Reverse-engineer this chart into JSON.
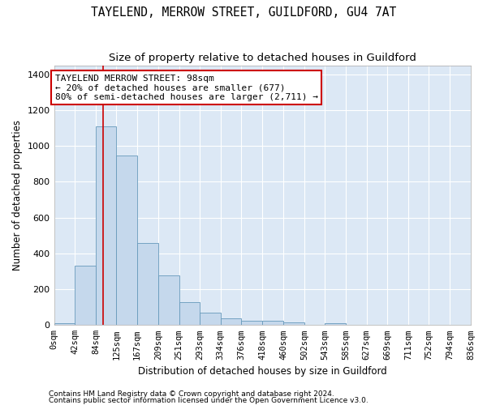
{
  "title": "TAYELEND, MERROW STREET, GUILDFORD, GU4 7AT",
  "subtitle": "Size of property relative to detached houses in Guildford",
  "xlabel": "Distribution of detached houses by size in Guildford",
  "ylabel": "Number of detached properties",
  "bar_heights": [
    10,
    330,
    1110,
    945,
    460,
    275,
    130,
    68,
    38,
    25,
    25,
    15,
    0,
    12,
    0,
    0,
    0,
    0,
    0,
    0
  ],
  "bar_color": "#c5d8ec",
  "bar_edge_color": "#6699bb",
  "x_labels": [
    "0sqm",
    "42sqm",
    "84sqm",
    "125sqm",
    "167sqm",
    "209sqm",
    "251sqm",
    "293sqm",
    "334sqm",
    "376sqm",
    "418sqm",
    "460sqm",
    "502sqm",
    "543sqm",
    "585sqm",
    "627sqm",
    "669sqm",
    "711sqm",
    "752sqm",
    "794sqm",
    "836sqm"
  ],
  "bin_edges": [
    0,
    42,
    84,
    125,
    167,
    209,
    251,
    293,
    334,
    376,
    418,
    460,
    502,
    543,
    585,
    627,
    669,
    711,
    752,
    794,
    836
  ],
  "ylim": [
    0,
    1450
  ],
  "yticks": [
    0,
    200,
    400,
    600,
    800,
    1000,
    1200,
    1400
  ],
  "vline_x": 98,
  "vline_color": "#cc0000",
  "annot_line1": "TAYELEND MERROW STREET: 98sqm",
  "annot_line2": "← 20% of detached houses are smaller (677)",
  "annot_line3": "80% of semi-detached houses are larger (2,711) →",
  "annot_edge_color": "#cc0000",
  "bg_color": "#dce8f5",
  "grid_color": "#c0cfe0",
  "footer1": "Contains HM Land Registry data © Crown copyright and database right 2024.",
  "footer2": "Contains public sector information licensed under the Open Government Licence v3.0.",
  "title_fontsize": 10.5,
  "subtitle_fontsize": 9.5,
  "axis_label_fontsize": 8.5,
  "tick_fontsize": 7.5,
  "annot_fontsize": 8,
  "footer_fontsize": 6.5
}
